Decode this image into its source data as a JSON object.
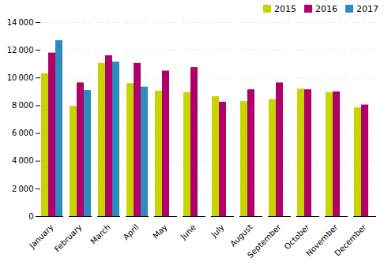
{
  "chart_data": {
    "type": "bar",
    "categories": [
      "January",
      "February",
      "March",
      "April",
      "May",
      "June",
      "July",
      "August",
      "September",
      "October",
      "November",
      "December"
    ],
    "series": [
      {
        "name": "2015",
        "color": "#c8d400",
        "values": [
          10300,
          7950,
          11050,
          9600,
          9050,
          8950,
          8650,
          8300,
          8450,
          9200,
          8950,
          7850
        ]
      },
      {
        "name": "2016",
        "color": "#b0006a",
        "values": [
          11800,
          9650,
          11600,
          11050,
          10500,
          10750,
          8250,
          9150,
          9650,
          9150,
          9000,
          8050
        ]
      },
      {
        "name": "2017",
        "color": "#2e8bbf",
        "values": [
          12700,
          9100,
          11150,
          9350,
          null,
          null,
          null,
          null,
          null,
          null,
          null,
          null
        ]
      }
    ],
    "ylim": [
      0,
      14000
    ],
    "yticks": [
      0,
      {
        "value": 2000,
        "label": "2 000"
      },
      {
        "value": 4000,
        "label": "4 000"
      },
      {
        "value": 6000,
        "label": "6 000"
      },
      {
        "value": 8000,
        "label": "8 000"
      },
      {
        "value": 10000,
        "label": "10 000"
      },
      {
        "value": 12000,
        "label": "12 000"
      },
      {
        "value": 14000,
        "label": "14 000"
      }
    ],
    "grid": true,
    "legend": "upper right"
  }
}
